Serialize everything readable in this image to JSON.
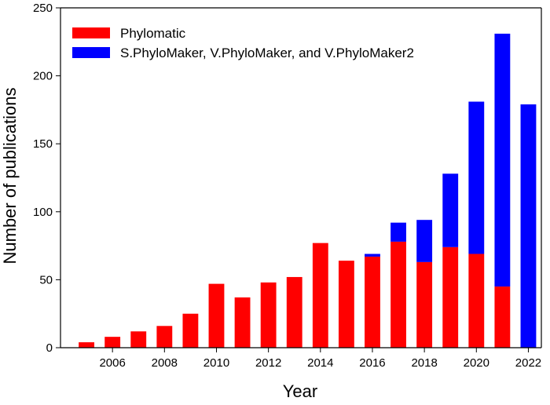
{
  "chart_data": {
    "type": "bar",
    "stacked": true,
    "title": "",
    "xlabel": "Year",
    "ylabel": "Number of publications",
    "ylim": [
      0,
      250
    ],
    "yticks": [
      0,
      50,
      100,
      150,
      200,
      250
    ],
    "xlim": [
      2004,
      2022.5
    ],
    "xticks": [
      2006,
      2008,
      2010,
      2012,
      2014,
      2016,
      2018,
      2020,
      2022
    ],
    "legend_position": "top-left",
    "x": [
      2005,
      2006,
      2007,
      2008,
      2009,
      2010,
      2011,
      2012,
      2013,
      2014,
      2015,
      2016,
      2017,
      2018,
      2019,
      2020,
      2021,
      2022
    ],
    "series": [
      {
        "name": "Phylomatic",
        "color": "#ff0000",
        "values": [
          4,
          8,
          12,
          16,
          25,
          47,
          37,
          48,
          52,
          77,
          64,
          67,
          78,
          63,
          74,
          69,
          45,
          0
        ]
      },
      {
        "name": "S.PhyloMaker, V.PhyloMaker, and V.PhyloMaker2",
        "color": "#0000ff",
        "values": [
          0,
          0,
          0,
          0,
          0,
          0,
          0,
          0,
          0,
          0,
          0,
          2,
          14,
          31,
          54,
          112,
          186,
          179
        ]
      }
    ]
  }
}
